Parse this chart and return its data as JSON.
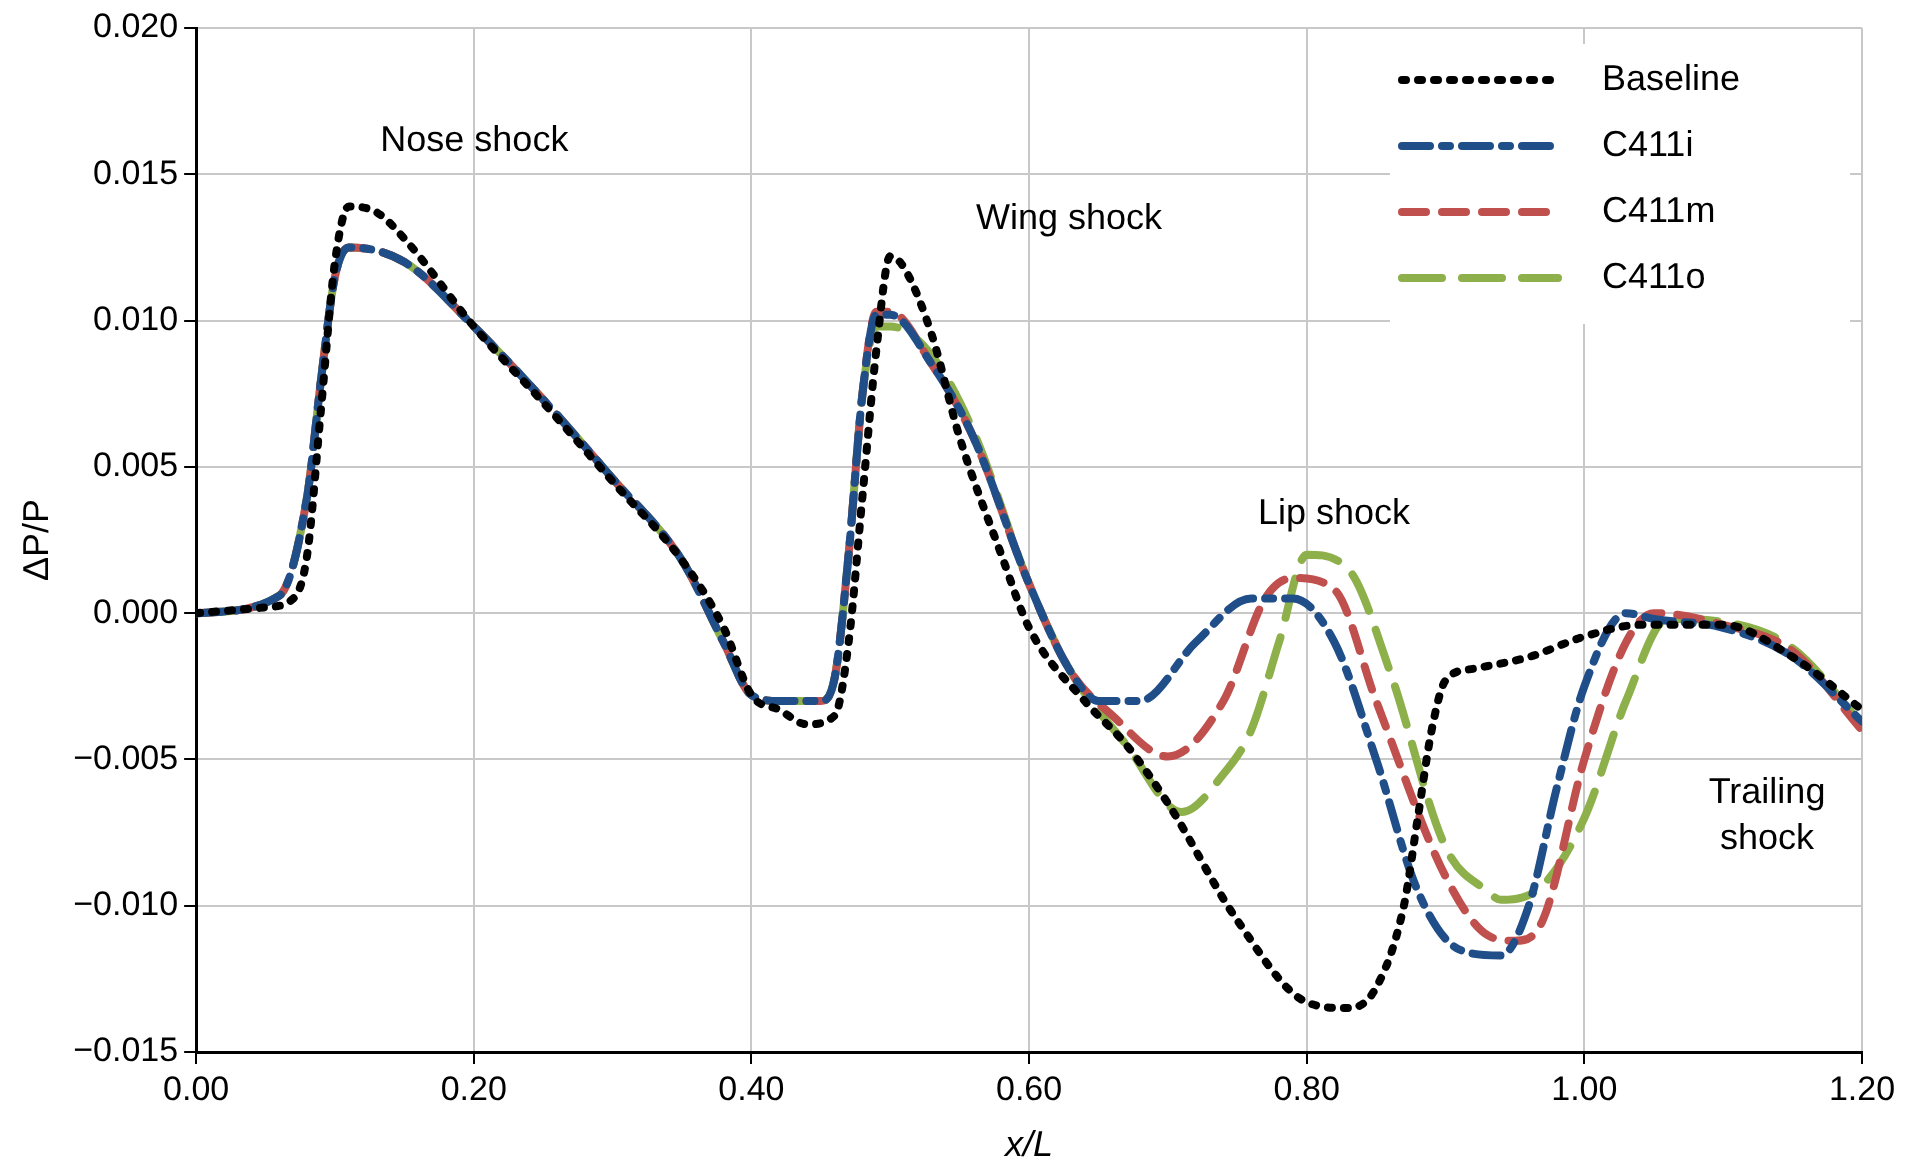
{
  "chart_data": {
    "type": "line",
    "xlabel": "x/L",
    "ylabel": "ΔP/P",
    "xlim": [
      0,
      1.2
    ],
    "xticks": [
      {
        "value": 0,
        "label": "0.00"
      },
      {
        "value": 0.2,
        "label": "0.20"
      },
      {
        "value": 0.4,
        "label": "0.40"
      },
      {
        "value": 0.6,
        "label": "0.60"
      },
      {
        "value": 0.8,
        "label": "0.80"
      },
      {
        "value": 1,
        "label": "1.00"
      },
      {
        "value": 1.2,
        "label": "1.20"
      }
    ],
    "ylim": [
      -0.015,
      0.02
    ],
    "yticks": [
      {
        "value": -0.015,
        "label": "−0.015"
      },
      {
        "value": -0.01,
        "label": "−0.010"
      },
      {
        "value": -0.005,
        "label": "−0.005"
      },
      {
        "value": 0,
        "label": "0.000"
      },
      {
        "value": 0.005,
        "label": "0.005"
      },
      {
        "value": 0.01,
        "label": "0.010"
      },
      {
        "value": 0.015,
        "label": "0.015"
      },
      {
        "value": 0.02,
        "label": "0.020"
      }
    ],
    "grid": true,
    "legend": "top right",
    "marker": "none",
    "series": [
      {
        "name": "Baseline",
        "color": "#000000",
        "line_style": "dotted",
        "x": [
          0,
          0.05,
          0.07,
          0.08,
          0.09,
          0.1,
          0.11,
          0.13,
          0.15,
          0.2,
          0.25,
          0.3,
          0.35,
          0.38,
          0.4,
          0.42,
          0.44,
          0.46,
          0.47,
          0.48,
          0.49,
          0.5,
          0.51,
          0.53,
          0.55,
          0.58,
          0.6,
          0.64,
          0.67,
          0.7,
          0.75,
          0.8,
          0.83,
          0.85,
          0.87,
          0.88,
          0.89,
          0.9,
          0.92,
          0.96,
          1,
          1.04,
          1.1,
          1.15,
          1.2
        ],
        "values": [
          0,
          0.0002,
          0.0005,
          0.002,
          0.007,
          0.012,
          0.0139,
          0.0137,
          0.0128,
          0.0098,
          0.0072,
          0.0045,
          0.0018,
          -0.0005,
          -0.0028,
          -0.0033,
          -0.0038,
          -0.0035,
          -0.001,
          0.004,
          0.009,
          0.0122,
          0.0118,
          0.0095,
          0.006,
          0.002,
          -0.0005,
          -0.003,
          -0.0045,
          -0.0065,
          -0.0105,
          -0.0133,
          -0.0135,
          -0.0128,
          -0.01,
          -0.007,
          -0.004,
          -0.0023,
          -0.0019,
          -0.0015,
          -0.0008,
          -0.0004,
          -0.0004,
          -0.0015,
          -0.0033
        ]
      },
      {
        "name": "C411i",
        "color": "#1f4e89",
        "line_style": "dashed",
        "x": [
          0,
          0.06,
          0.08,
          0.09,
          0.1,
          0.11,
          0.15,
          0.2,
          0.25,
          0.3,
          0.35,
          0.38,
          0.4,
          0.42,
          0.45,
          0.46,
          0.47,
          0.48,
          0.49,
          0.5,
          0.53,
          0.56,
          0.6,
          0.63,
          0.65,
          0.68,
          0.72,
          0.76,
          0.79,
          0.82,
          0.85,
          0.88,
          0.91,
          0.94,
          0.96,
          0.98,
          1,
          1.03,
          1.05,
          1.1,
          1.15,
          1.2
        ],
        "values": [
          0,
          0.0006,
          0.004,
          0.008,
          0.0115,
          0.0125,
          0.012,
          0.0098,
          0.0073,
          0.0046,
          0.0018,
          -0.001,
          -0.0028,
          -0.003,
          -0.003,
          -0.0022,
          0.002,
          0.0075,
          0.0102,
          0.0102,
          0.0085,
          0.006,
          0.001,
          -0.002,
          -0.003,
          -0.003,
          -0.001,
          0.0005,
          0.0005,
          -0.001,
          -0.005,
          -0.0095,
          -0.0115,
          -0.0117,
          -0.01,
          -0.006,
          -0.0025,
          0,
          -0.0002,
          -0.0005,
          -0.0015,
          -0.0037
        ]
      },
      {
        "name": "C411m",
        "color": "#c0504d",
        "line_style": "dashed",
        "x": [
          0,
          0.06,
          0.08,
          0.09,
          0.1,
          0.11,
          0.15,
          0.2,
          0.25,
          0.3,
          0.35,
          0.38,
          0.4,
          0.42,
          0.45,
          0.46,
          0.47,
          0.48,
          0.49,
          0.5,
          0.53,
          0.56,
          0.6,
          0.63,
          0.66,
          0.7,
          0.74,
          0.77,
          0.79,
          0.82,
          0.85,
          0.9,
          0.93,
          0.95,
          0.97,
          1,
          1.03,
          1.05,
          1.1,
          1.15,
          1.2
        ],
        "values": [
          0,
          0.0006,
          0.004,
          0.008,
          0.0115,
          0.0125,
          0.012,
          0.0098,
          0.0073,
          0.0046,
          0.0018,
          -0.001,
          -0.0028,
          -0.003,
          -0.003,
          -0.0022,
          0.002,
          0.0075,
          0.0103,
          0.0103,
          0.0085,
          0.006,
          0.001,
          -0.002,
          -0.0035,
          -0.0049,
          -0.003,
          0.0005,
          0.0012,
          0.0008,
          -0.003,
          -0.009,
          -0.011,
          -0.0112,
          -0.0105,
          -0.005,
          -0.001,
          0,
          -0.0004,
          -0.0013,
          -0.004
        ]
      },
      {
        "name": "C411o",
        "color": "#8db04a",
        "line_style": "dashed",
        "x": [
          0,
          0.06,
          0.08,
          0.09,
          0.1,
          0.11,
          0.15,
          0.2,
          0.25,
          0.3,
          0.35,
          0.38,
          0.4,
          0.42,
          0.45,
          0.46,
          0.47,
          0.48,
          0.49,
          0.5,
          0.53,
          0.56,
          0.6,
          0.63,
          0.67,
          0.71,
          0.74,
          0.76,
          0.78,
          0.8,
          0.83,
          0.86,
          0.9,
          0.93,
          0.94,
          0.97,
          1,
          1.03,
          1.06,
          1.1,
          1.15,
          1.2
        ],
        "values": [
          0,
          0.0006,
          0.004,
          0.008,
          0.0115,
          0.0125,
          0.012,
          0.0098,
          0.0073,
          0.0046,
          0.0018,
          -0.001,
          -0.0028,
          -0.003,
          -0.003,
          -0.0022,
          0.002,
          0.0075,
          0.0098,
          0.0098,
          0.0088,
          0.0062,
          0.001,
          -0.002,
          -0.0045,
          -0.0068,
          -0.0055,
          -0.004,
          -0.001,
          0.002,
          0.0015,
          -0.002,
          -0.008,
          -0.0095,
          -0.0098,
          -0.0093,
          -0.007,
          -0.003,
          -0.0002,
          -0.0003,
          -0.0012,
          -0.0038
        ]
      }
    ],
    "annotations": [
      "Nose shock",
      "Wing shock",
      "Lip shock",
      "Trailing\nshock"
    ]
  }
}
